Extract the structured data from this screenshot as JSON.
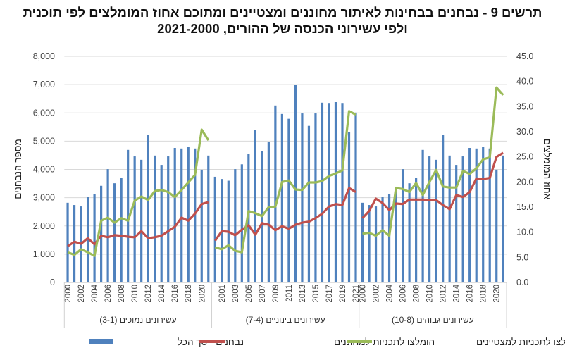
{
  "title": {
    "line1": "תרשים 9 - נבחנים בבחינות לאיתור מחוננים ומצטיינים ומתוכם אחוז המומלצים לפי תוכנית",
    "line2": "ולפי עשירוני הכנסה של ההורים, 2021-2000"
  },
  "chart_data": {
    "type": "bar+line",
    "title": "תרשים 9 - נבחנים בבחינות לאיתור מחוננים ומצטיינים ומתוכם אחוז המומלצים לפי תוכנית ולפי עשירוני הכנסה של ההורים, 2021-2000",
    "ylabel_left": "מספר הנבחנים",
    "ylabel_right": "אחוז המומלצים",
    "ylim_left": [
      0,
      8000
    ],
    "ylim_right": [
      0,
      45
    ],
    "yticks_left": [
      "0",
      "1,000",
      "2,000",
      "3,000",
      "4,000",
      "5,000",
      "6,000",
      "7,000",
      "8,000"
    ],
    "yticks_right": [
      "0.0",
      "5.0",
      "10.0",
      "15.0",
      "20.0",
      "25.0",
      "30.0",
      "35.0",
      "40.0",
      "45.0"
    ],
    "grid": true,
    "legend_position": "bottom",
    "colors": {
      "total": "#4f81bd",
      "gifted": "#c0504d",
      "outstanding": "#9bbb59"
    },
    "years": [
      2000,
      2001,
      2002,
      2003,
      2004,
      2005,
      2006,
      2007,
      2008,
      2009,
      2010,
      2011,
      2012,
      2013,
      2014,
      2015,
      2016,
      2017,
      2018,
      2019,
      2020,
      2021
    ],
    "groups": [
      {
        "label": "עשירונים נמוכים (3-1)",
        "year_labels_shown": "even",
        "total": [
          2820,
          2740,
          2690,
          3020,
          3120,
          3420,
          4010,
          3510,
          3710,
          4690,
          4460,
          4340,
          5210,
          4490,
          4160,
          4460,
          4760,
          4740,
          4790,
          4740,
          3990,
          4490
        ],
        "gifted_pct": [
          7.2,
          8.1,
          7.7,
          8.8,
          7.6,
          9.3,
          9.0,
          9.4,
          9.3,
          9.1,
          9.0,
          10.2,
          8.8,
          9.0,
          9.3,
          10.2,
          11.1,
          12.9,
          12.3,
          13.7,
          15.6,
          16.0
        ],
        "outstanding_pct": [
          6.0,
          5.5,
          6.6,
          6.0,
          5.3,
          12.3,
          12.9,
          11.9,
          12.8,
          12.3,
          16.3,
          17.1,
          16.4,
          18.2,
          18.4,
          18.0,
          17.0,
          18.4,
          19.9,
          21.4,
          30.4,
          28.3
        ]
      },
      {
        "label": "עשירונים בינוניים (7-4)",
        "year_labels_shown": "odd",
        "total": [
          3740,
          3660,
          3600,
          4010,
          4180,
          4540,
          5390,
          4660,
          4960,
          6260,
          5960,
          5790,
          6980,
          5980,
          5540,
          5980,
          6360,
          6350,
          6380,
          6350,
          5310,
          6010
        ],
        "gifted_pct": [
          8.3,
          10.2,
          10.1,
          9.4,
          10.5,
          11.4,
          9.5,
          11.8,
          11.5,
          10.4,
          11.2,
          10.7,
          11.5,
          11.9,
          12.1,
          12.8,
          13.7,
          15.1,
          15.6,
          15.4,
          18.8,
          18.0
        ],
        "outstanding_pct": [
          7.0,
          6.6,
          7.4,
          6.3,
          6.0,
          14.2,
          13.8,
          13.2,
          15.0,
          15.1,
          20.0,
          20.3,
          18.5,
          18.4,
          19.9,
          19.9,
          20.2,
          21.2,
          21.7,
          22.3,
          34.1,
          33.4
        ]
      },
      {
        "label": "עשירונים גבוהים (10-8)",
        "year_labels_shown": "even",
        "total": [
          2820,
          2740,
          2690,
          3020,
          3120,
          3390,
          4010,
          3510,
          3710,
          4690,
          4460,
          4340,
          5210,
          4490,
          4160,
          4460,
          4760,
          4740,
          4790,
          4740,
          3990,
          4490
        ],
        "gifted_pct": [
          12.8,
          14.2,
          16.7,
          15.8,
          14.4,
          15.7,
          15.6,
          16.5,
          16.5,
          16.5,
          16.4,
          16.4,
          15.4,
          14.6,
          17.4,
          17.0,
          18.0,
          20.7,
          20.6,
          20.8,
          25.0,
          25.8
        ],
        "outstanding_pct": [
          9.7,
          9.9,
          9.3,
          10.4,
          9.3,
          18.8,
          18.6,
          18.0,
          19.8,
          17.4,
          20.0,
          22.4,
          19.1,
          18.9,
          18.9,
          22.2,
          21.6,
          22.7,
          24.5,
          24.9,
          38.8,
          37.3
        ]
      }
    ],
    "series": [
      {
        "name": "נבחנים - סך הכל",
        "type": "bar",
        "axis": "left"
      },
      {
        "name": "הומלצו לתכניות למחוננים",
        "type": "line",
        "axis": "right"
      },
      {
        "name": "הומלצו לתכניות למצטיינים",
        "type": "line",
        "axis": "right"
      }
    ]
  }
}
